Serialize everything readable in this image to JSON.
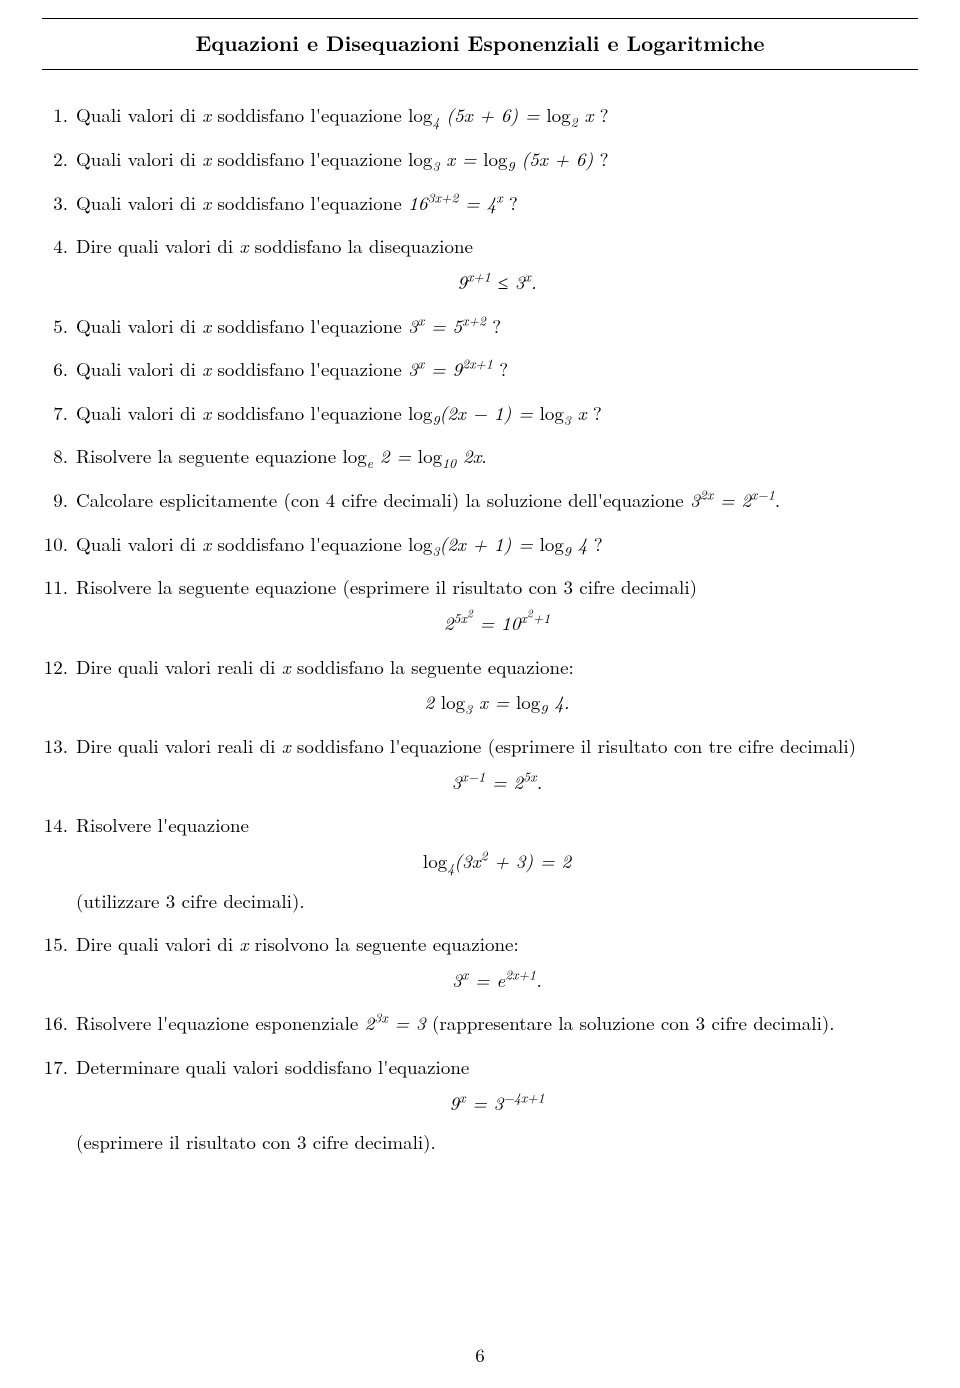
{
  "title": "Equazioni e Disequazioni Esponenziali e Logaritmiche",
  "pageNumber": "6",
  "items": [
    {
      "html": "Quali valori di <span class='math'>x</span> soddisfano l'equazione <span class='math'><span class='rm'>log</span><sub>4</sub> (5x + 6) = <span class='rm'>log</span><sub>2</sub> x</span> ?"
    },
    {
      "html": "Quali valori di <span class='math'>x</span> soddisfano l'equazione <span class='math'><span class='rm'>log</span><sub>3</sub> x = <span class='rm'>log</span><sub>9</sub> (5x + 6)</span> ?"
    },
    {
      "html": "Quali valori di <span class='math'>x</span> soddisfano l'equazione <span class='math'>16<sup>3x+2</sup> = 4<sup>x</sup></span> ?"
    },
    {
      "html": "Dire quali valori di <span class='math'>x</span> soddisfano la disequazione",
      "eq": "<span class='math'>9<sup>x+1</sup> &le; 3<sup>x</sup>.</span>"
    },
    {
      "html": "Quali valori di <span class='math'>x</span> soddisfano l'equazione <span class='math'>3<sup>x</sup> = 5<sup>x+2</sup></span> ?"
    },
    {
      "html": "Quali valori di <span class='math'>x</span> soddisfano l'equazione <span class='math'>3<sup>x</sup> = 9<sup>2x+1</sup></span> ?"
    },
    {
      "html": "Quali valori di <span class='math'>x</span> soddisfano l'equazione <span class='math'><span class='rm'>log</span><sub>9</sub>(2x &minus; 1) = <span class='rm'>log</span><sub>3</sub> x</span> ?"
    },
    {
      "html": "Risolvere la seguente equazione <span class='math'><span class='rm'>log</span><sub>e</sub> 2 = <span class='rm'>log</span><sub>10</sub> 2x</span>."
    },
    {
      "html": "Calcolare esplicitamente (con 4 cifre decimali) la soluzione dell'equazione <span class='math'>3<sup>2x</sup> = 2<sup>x&minus;1</sup></span>."
    },
    {
      "html": "Quali valori di <span class='math'>x</span> soddisfano l'equazione <span class='math'><span class='rm'>log</span><sub>3</sub>(2x + 1) = <span class='rm'>log</span><sub>9</sub> 4</span> ?"
    },
    {
      "html": "Risolvere la seguente equazione (esprimere il risultato con 3 cifre decimali)",
      "eq": "<span class='math'>2<sup>5x<sup style='font-size:0.85em'>2</sup></sup> = 10<sup>x<sup style='font-size:0.85em'>2</sup>+1</sup></span>"
    },
    {
      "html": "Dire quali valori reali di <span class='math'>x</span> soddisfano la seguente equazione:",
      "eq": "<span class='math'>2 <span class='rm'>log</span><sub>3</sub> x = <span class='rm'>log</span><sub>9</sub> 4.</span>"
    },
    {
      "html": "Dire quali valori reali di <span class='math'>x</span> soddisfano l'equazione (esprimere il risultato con tre cifre decimali)",
      "eq": "<span class='math'>3<sup>x&minus;1</sup> = 2<sup>5x</sup>.</span>"
    },
    {
      "html": "Risolvere l'equazione",
      "eq": "<span class='math'><span class='rm'>log</span><sub>4</sub>(3x<sup>2</sup> + 3) = 2</span>",
      "post": "(utilizzare 3 cifre decimali)."
    },
    {
      "html": "Dire quali valori di <span class='math'>x</span> risolvono la seguente equazione:",
      "eq": "<span class='math'>3<sup>x</sup> = e<sup>2x+1</sup>.</span>"
    },
    {
      "html": "Risolvere l'equazione esponenziale <span class='math'>2<sup>3x</sup> = 3</span> (rappresentare la soluzione con 3 cifre decimali)."
    },
    {
      "html": "Determinare quali valori soddisfano l'equazione",
      "eq": "<span class='math'>9<sup>x</sup> = 3<sup>&minus;4x+1</sup></span>",
      "post": "(esprimere il risultato con 3 cifre decimali)."
    }
  ]
}
